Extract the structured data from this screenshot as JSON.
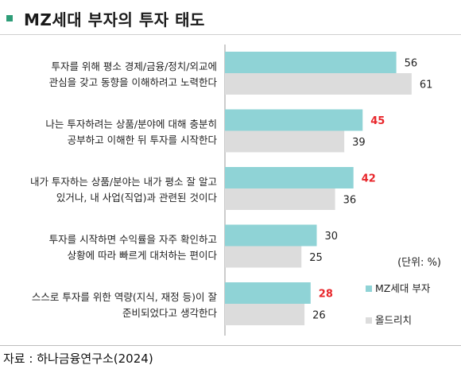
{
  "title": "MZ세대 부자의 투자 태도",
  "unit_note": "(단위: %)",
  "source": "자료 : 하나금융연구소(2024)",
  "colors": {
    "mz": "#8fd3d6",
    "old": "#dcdcdc",
    "highlight": "#e8262b",
    "normal": "#222222",
    "marker": "#2e9d78"
  },
  "chart_data": {
    "type": "bar",
    "orientation": "horizontal",
    "categories": [
      [
        "투자를 위해 평소 경제/금융/정치/외교에",
        "관심을 갖고 동향을 이해하려고 노력한다"
      ],
      [
        "나는 투자하려는 상품/분야에 대해 충분히",
        "공부하고 이해한 뒤 투자를 시작한다"
      ],
      [
        "내가 투자하는 상품/분야는 내가 평소 잘 알고",
        "있거나, 내 사업(직업)과 관련된 것이다"
      ],
      [
        "투자를 시작하면 수익률을 자주 확인하고",
        "상황에 따라 빠르게 대처하는 편이다"
      ],
      [
        "스스로 투자를 위한 역량(지식, 재정 등)이 잘",
        "준비되었다고 생각한다"
      ]
    ],
    "series": [
      {
        "name": "MZ세대 부자",
        "values": [
          56,
          45,
          42,
          30,
          28
        ],
        "highlight": [
          false,
          true,
          true,
          false,
          true
        ]
      },
      {
        "name": "올드리치",
        "values": [
          61,
          39,
          36,
          25,
          26
        ],
        "highlight": [
          false,
          false,
          false,
          false,
          false
        ]
      }
    ],
    "xlim": [
      0,
      100
    ],
    "grid": false,
    "legend": "bottom-right"
  }
}
